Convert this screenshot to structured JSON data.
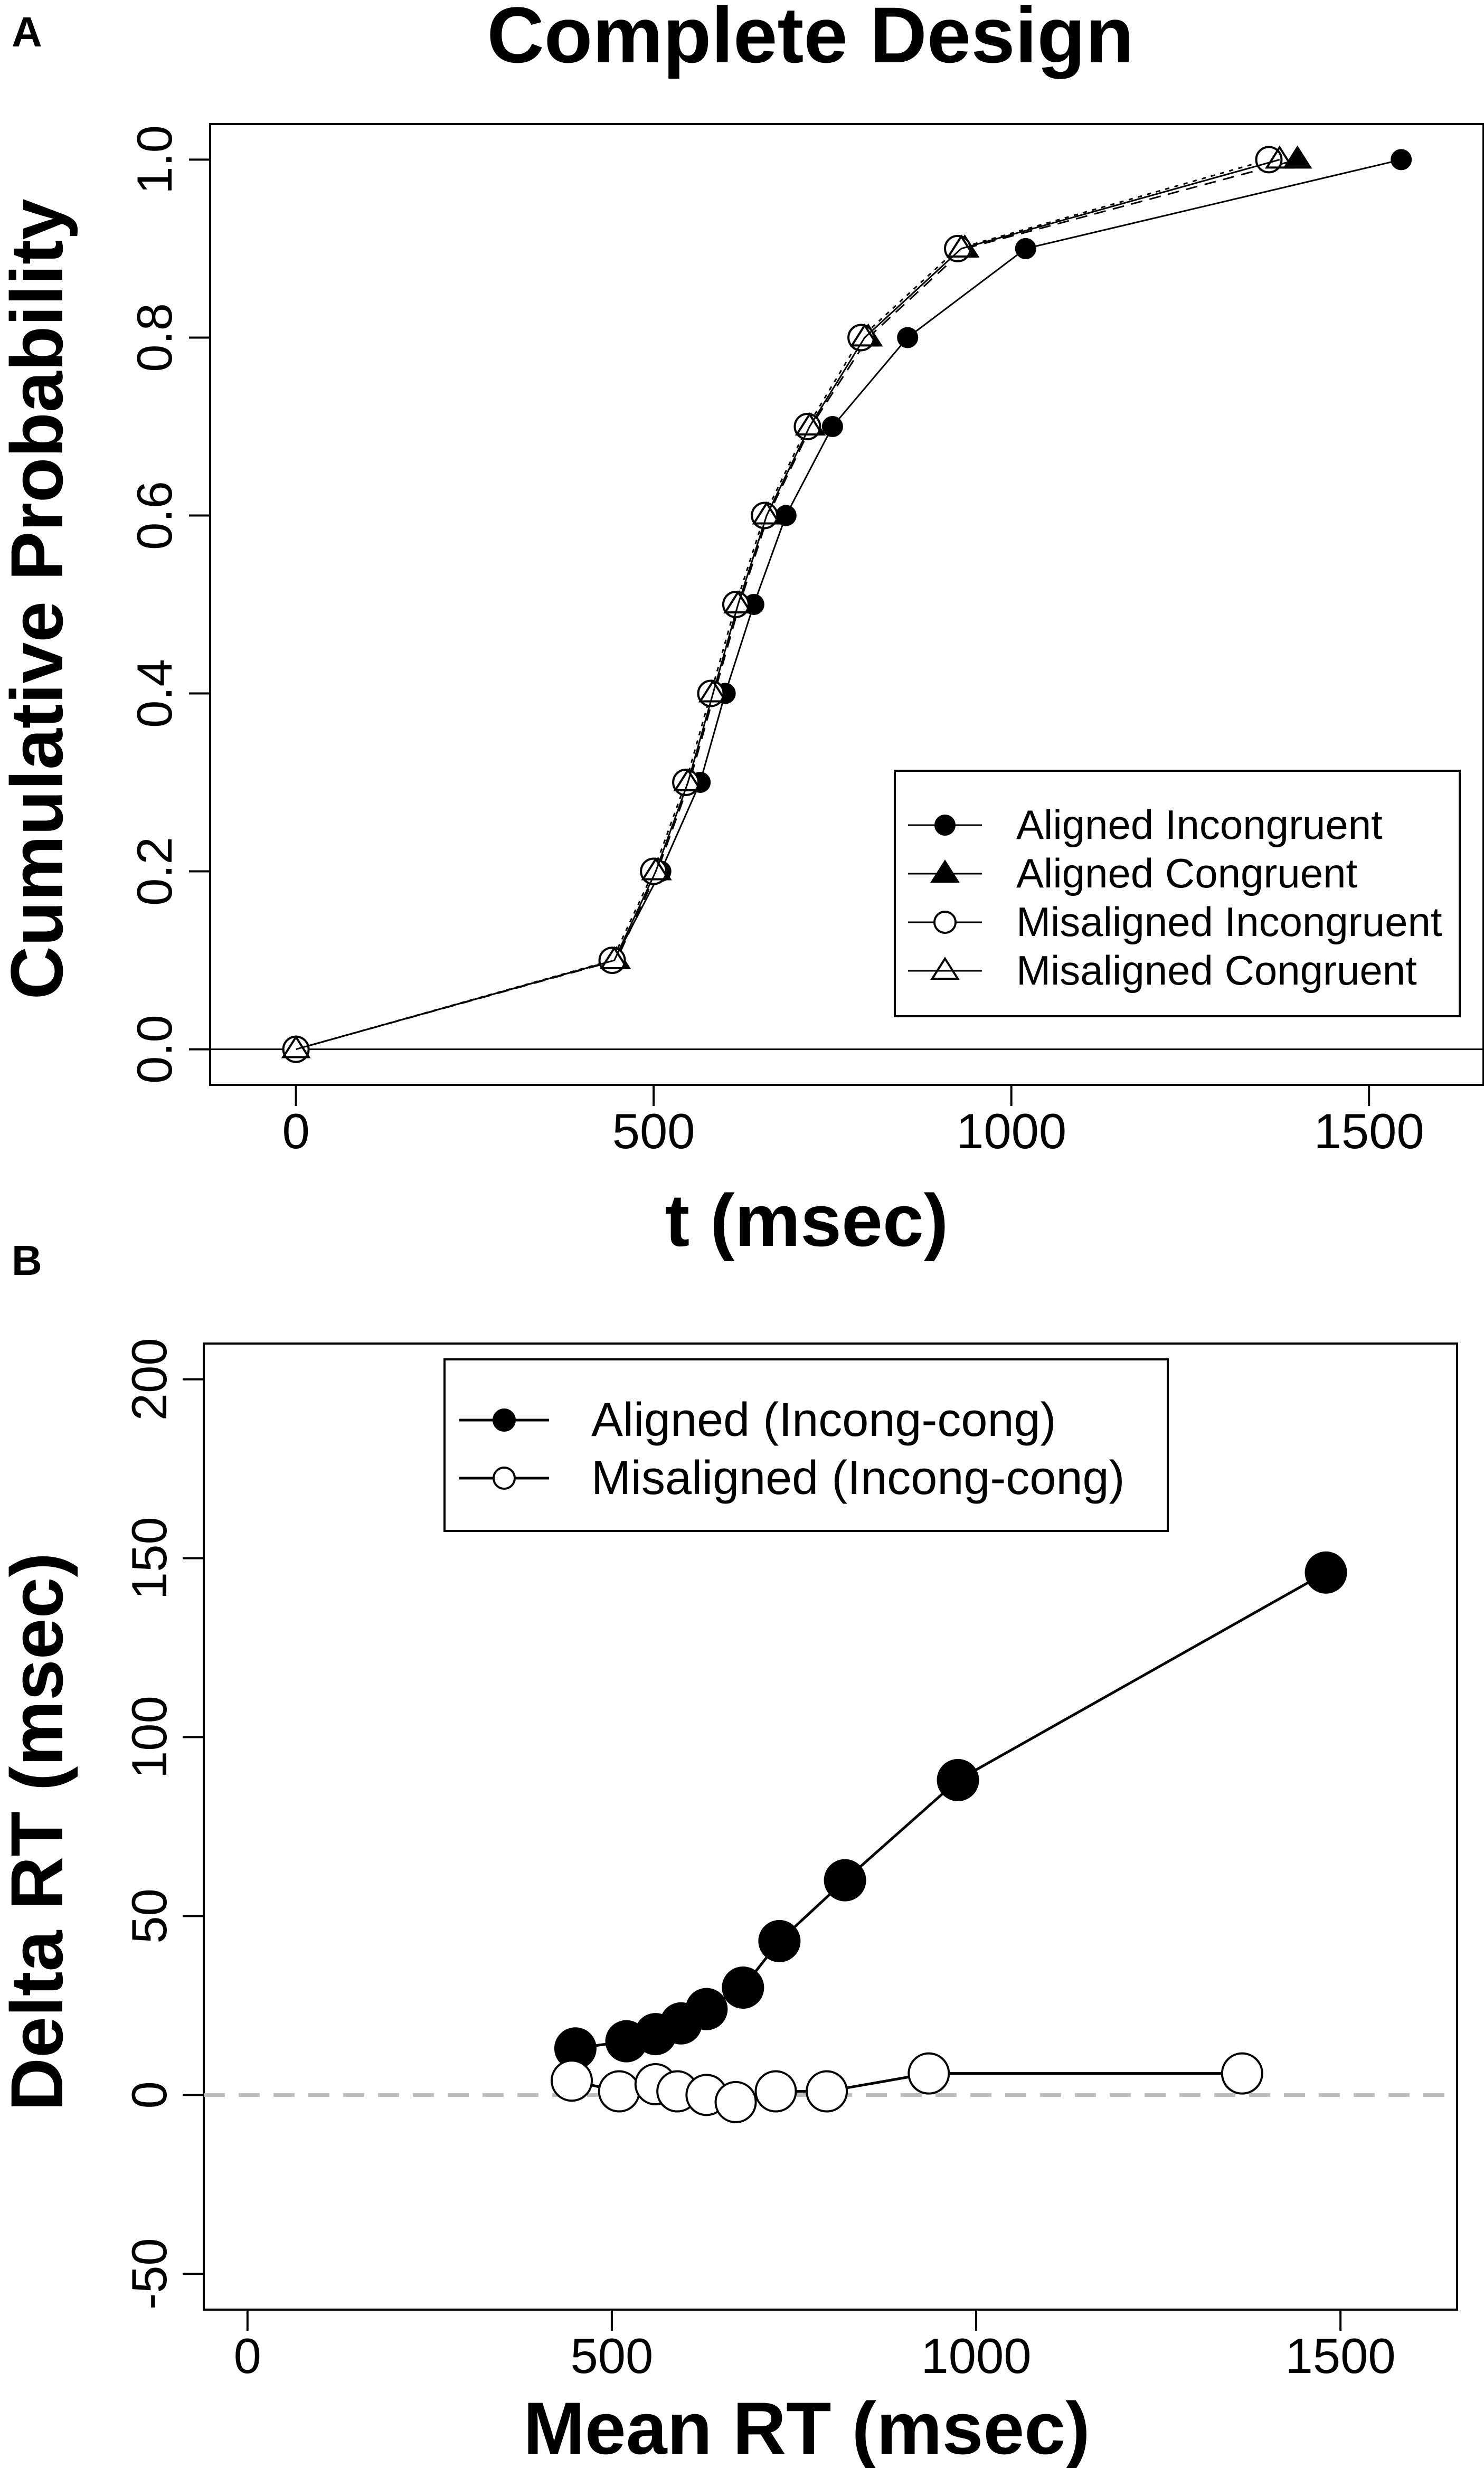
{
  "panel_a": {
    "panel_label": "A",
    "title": "Complete Design"
  },
  "panel_b": {
    "panel_label": "B"
  },
  "chart_data": [
    {
      "type": "line",
      "title": "Complete Design",
      "xlabel": "t (msec)",
      "ylabel": "Cumulative Probability",
      "xlim": [
        -120,
        1660
      ],
      "ylim": [
        -0.04,
        1.04
      ],
      "xticks": [
        0,
        500,
        1000,
        1500
      ],
      "xtick_labels": [
        "0",
        "500",
        "1000",
        "1500"
      ],
      "yticks": [
        0.0,
        0.2,
        0.4,
        0.6,
        0.8,
        1.0
      ],
      "ytick_labels": [
        "0.0",
        "0.2",
        "0.4",
        "0.6",
        "0.8",
        "1.0"
      ],
      "hline": 0,
      "legend_position": "lower-right",
      "series": [
        {
          "name": "Aligned Incongruent",
          "marker": "filled-circle",
          "dash": "solid",
          "x": [
            0,
            445,
            510,
            565,
            600,
            640,
            685,
            750,
            855,
            1020,
            1545
          ],
          "y": [
            0,
            0.1,
            0.2,
            0.3,
            0.4,
            0.5,
            0.6,
            0.7,
            0.8,
            0.9,
            1.0
          ]
        },
        {
          "name": "Aligned Congruent",
          "marker": "filled-triangle",
          "dash": "dashed",
          "x": [
            0,
            448,
            505,
            550,
            585,
            620,
            660,
            720,
            800,
            935,
            1400
          ],
          "y": [
            0,
            0.1,
            0.2,
            0.3,
            0.4,
            0.5,
            0.6,
            0.7,
            0.8,
            0.9,
            1.0
          ]
        },
        {
          "name": "Misaligned Incongruent",
          "marker": "open-circle",
          "dash": "dotted",
          "x": [
            0,
            442,
            500,
            545,
            580,
            615,
            655,
            715,
            790,
            925,
            1360
          ],
          "y": [
            0,
            0.1,
            0.2,
            0.3,
            0.4,
            0.5,
            0.6,
            0.7,
            0.8,
            0.9,
            1.0
          ]
        },
        {
          "name": "Misaligned Congruent",
          "marker": "open-triangle",
          "dash": "solid",
          "x": [
            0,
            445,
            503,
            548,
            583,
            618,
            658,
            718,
            795,
            930,
            1375
          ],
          "y": [
            0,
            0.1,
            0.2,
            0.3,
            0.4,
            0.5,
            0.6,
            0.7,
            0.8,
            0.9,
            1.0
          ]
        }
      ]
    },
    {
      "type": "line",
      "title": "",
      "xlabel": "Mean RT (msec)",
      "ylabel": "Delta RT (msec)",
      "xlim": [
        -60,
        1660
      ],
      "ylim": [
        -60,
        210
      ],
      "xticks": [
        0,
        500,
        1000,
        1500
      ],
      "xtick_labels": [
        "0",
        "500",
        "1000",
        "1500"
      ],
      "yticks": [
        -50,
        0,
        50,
        100,
        150,
        200
      ],
      "ytick_labels": [
        "-50",
        "0",
        "50",
        "100",
        "150",
        "200"
      ],
      "hline": 0,
      "legend_position": "top-center",
      "series": [
        {
          "name": "Aligned (Incong-cong)",
          "marker": "filled-circle",
          "x": [
            450,
            520,
            560,
            595,
            630,
            680,
            730,
            820,
            975,
            1480
          ],
          "y": [
            13,
            15,
            17,
            20,
            24,
            30,
            43,
            60,
            88,
            146
          ]
        },
        {
          "name": "Misaligned (Incong-cong)",
          "marker": "open-circle",
          "x": [
            445,
            510,
            560,
            590,
            630,
            670,
            725,
            795,
            935,
            1365
          ],
          "y": [
            4,
            1,
            3,
            1,
            0,
            -2,
            1,
            1,
            6,
            6
          ]
        }
      ]
    }
  ]
}
